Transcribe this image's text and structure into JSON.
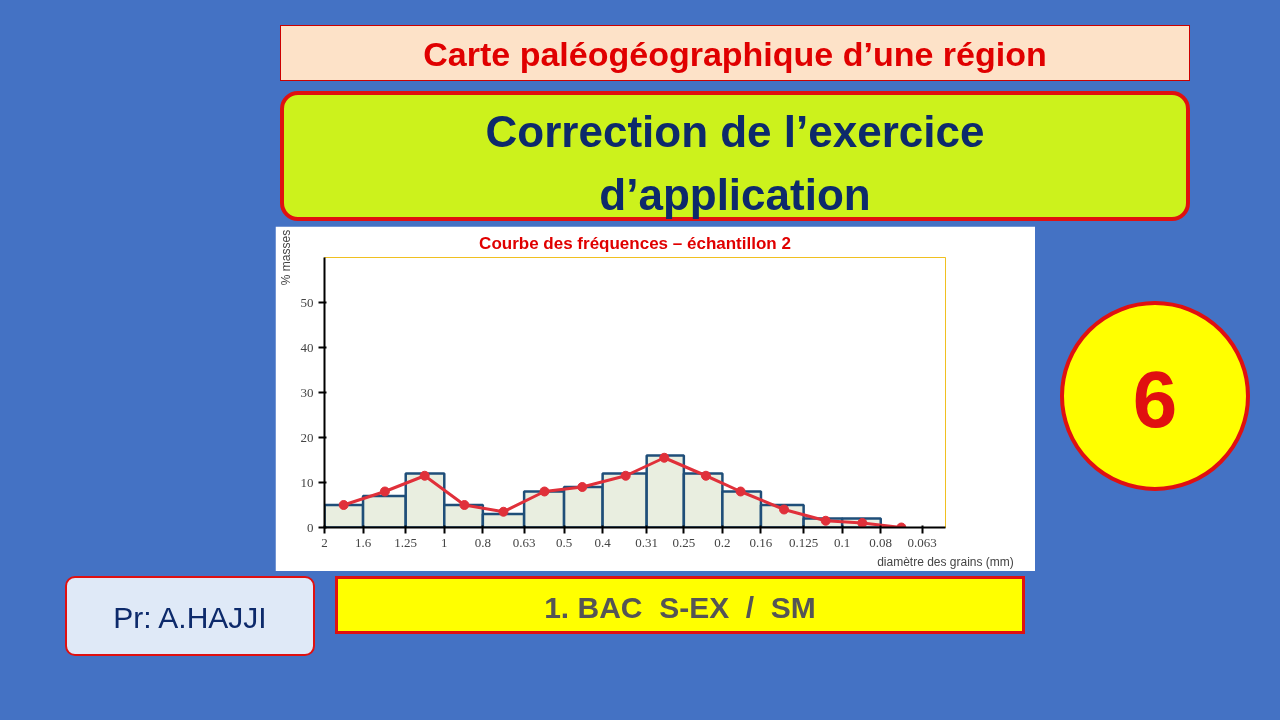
{
  "chart_data": {
    "type": "histogram",
    "title": "Courbe des fréquences – échantillon 2",
    "xlabel": "diamètre des grains (mm)",
    "ylabel": "% masses",
    "bins": [
      2,
      1.6,
      1.25,
      1,
      0.8,
      0.63,
      0.5,
      0.4,
      0.31,
      0.25,
      0.2,
      0.16,
      0.125,
      0.1,
      0.08
    ],
    "values": [
      5,
      7,
      12,
      5,
      3,
      8,
      9,
      12,
      16,
      12,
      8,
      5,
      2,
      2
    ],
    "color": "#e9eee0",
    "series": [
      {
        "type": "line",
        "color": "#e0303a",
        "x": [
          1.79,
          1.41,
          1.12,
          0.89,
          0.71,
          0.56,
          0.45,
          0.35,
          0.28,
          0.22,
          0.18,
          0.14,
          0.11,
          0.089,
          0.071
        ],
        "values": [
          5,
          8,
          11.5,
          5,
          3.5,
          8,
          9,
          11.5,
          15.5,
          11.5,
          8,
          4,
          1.5,
          1,
          0
        ]
      }
    ],
    "marker": "circle",
    "log": "x",
    "grid": false,
    "xlim": [
      2,
      0.055
    ],
    "xticks": [
      2,
      1.6,
      1.25,
      1,
      0.8,
      0.63,
      0.5,
      0.4,
      0.31,
      0.25,
      0.2,
      0.16,
      0.125,
      0.1,
      0.08,
      0.063
    ],
    "ylim": [
      0,
      60
    ],
    "yticks": [
      0,
      10,
      20,
      30,
      40,
      50
    ],
    "annotations": [
      "Carte paléogéographique d’une région",
      "Correction de l’exercice d’application",
      "6",
      "Pr: A.HAJJI",
      "1. BAC  S-EX  /  SM"
    ]
  }
}
